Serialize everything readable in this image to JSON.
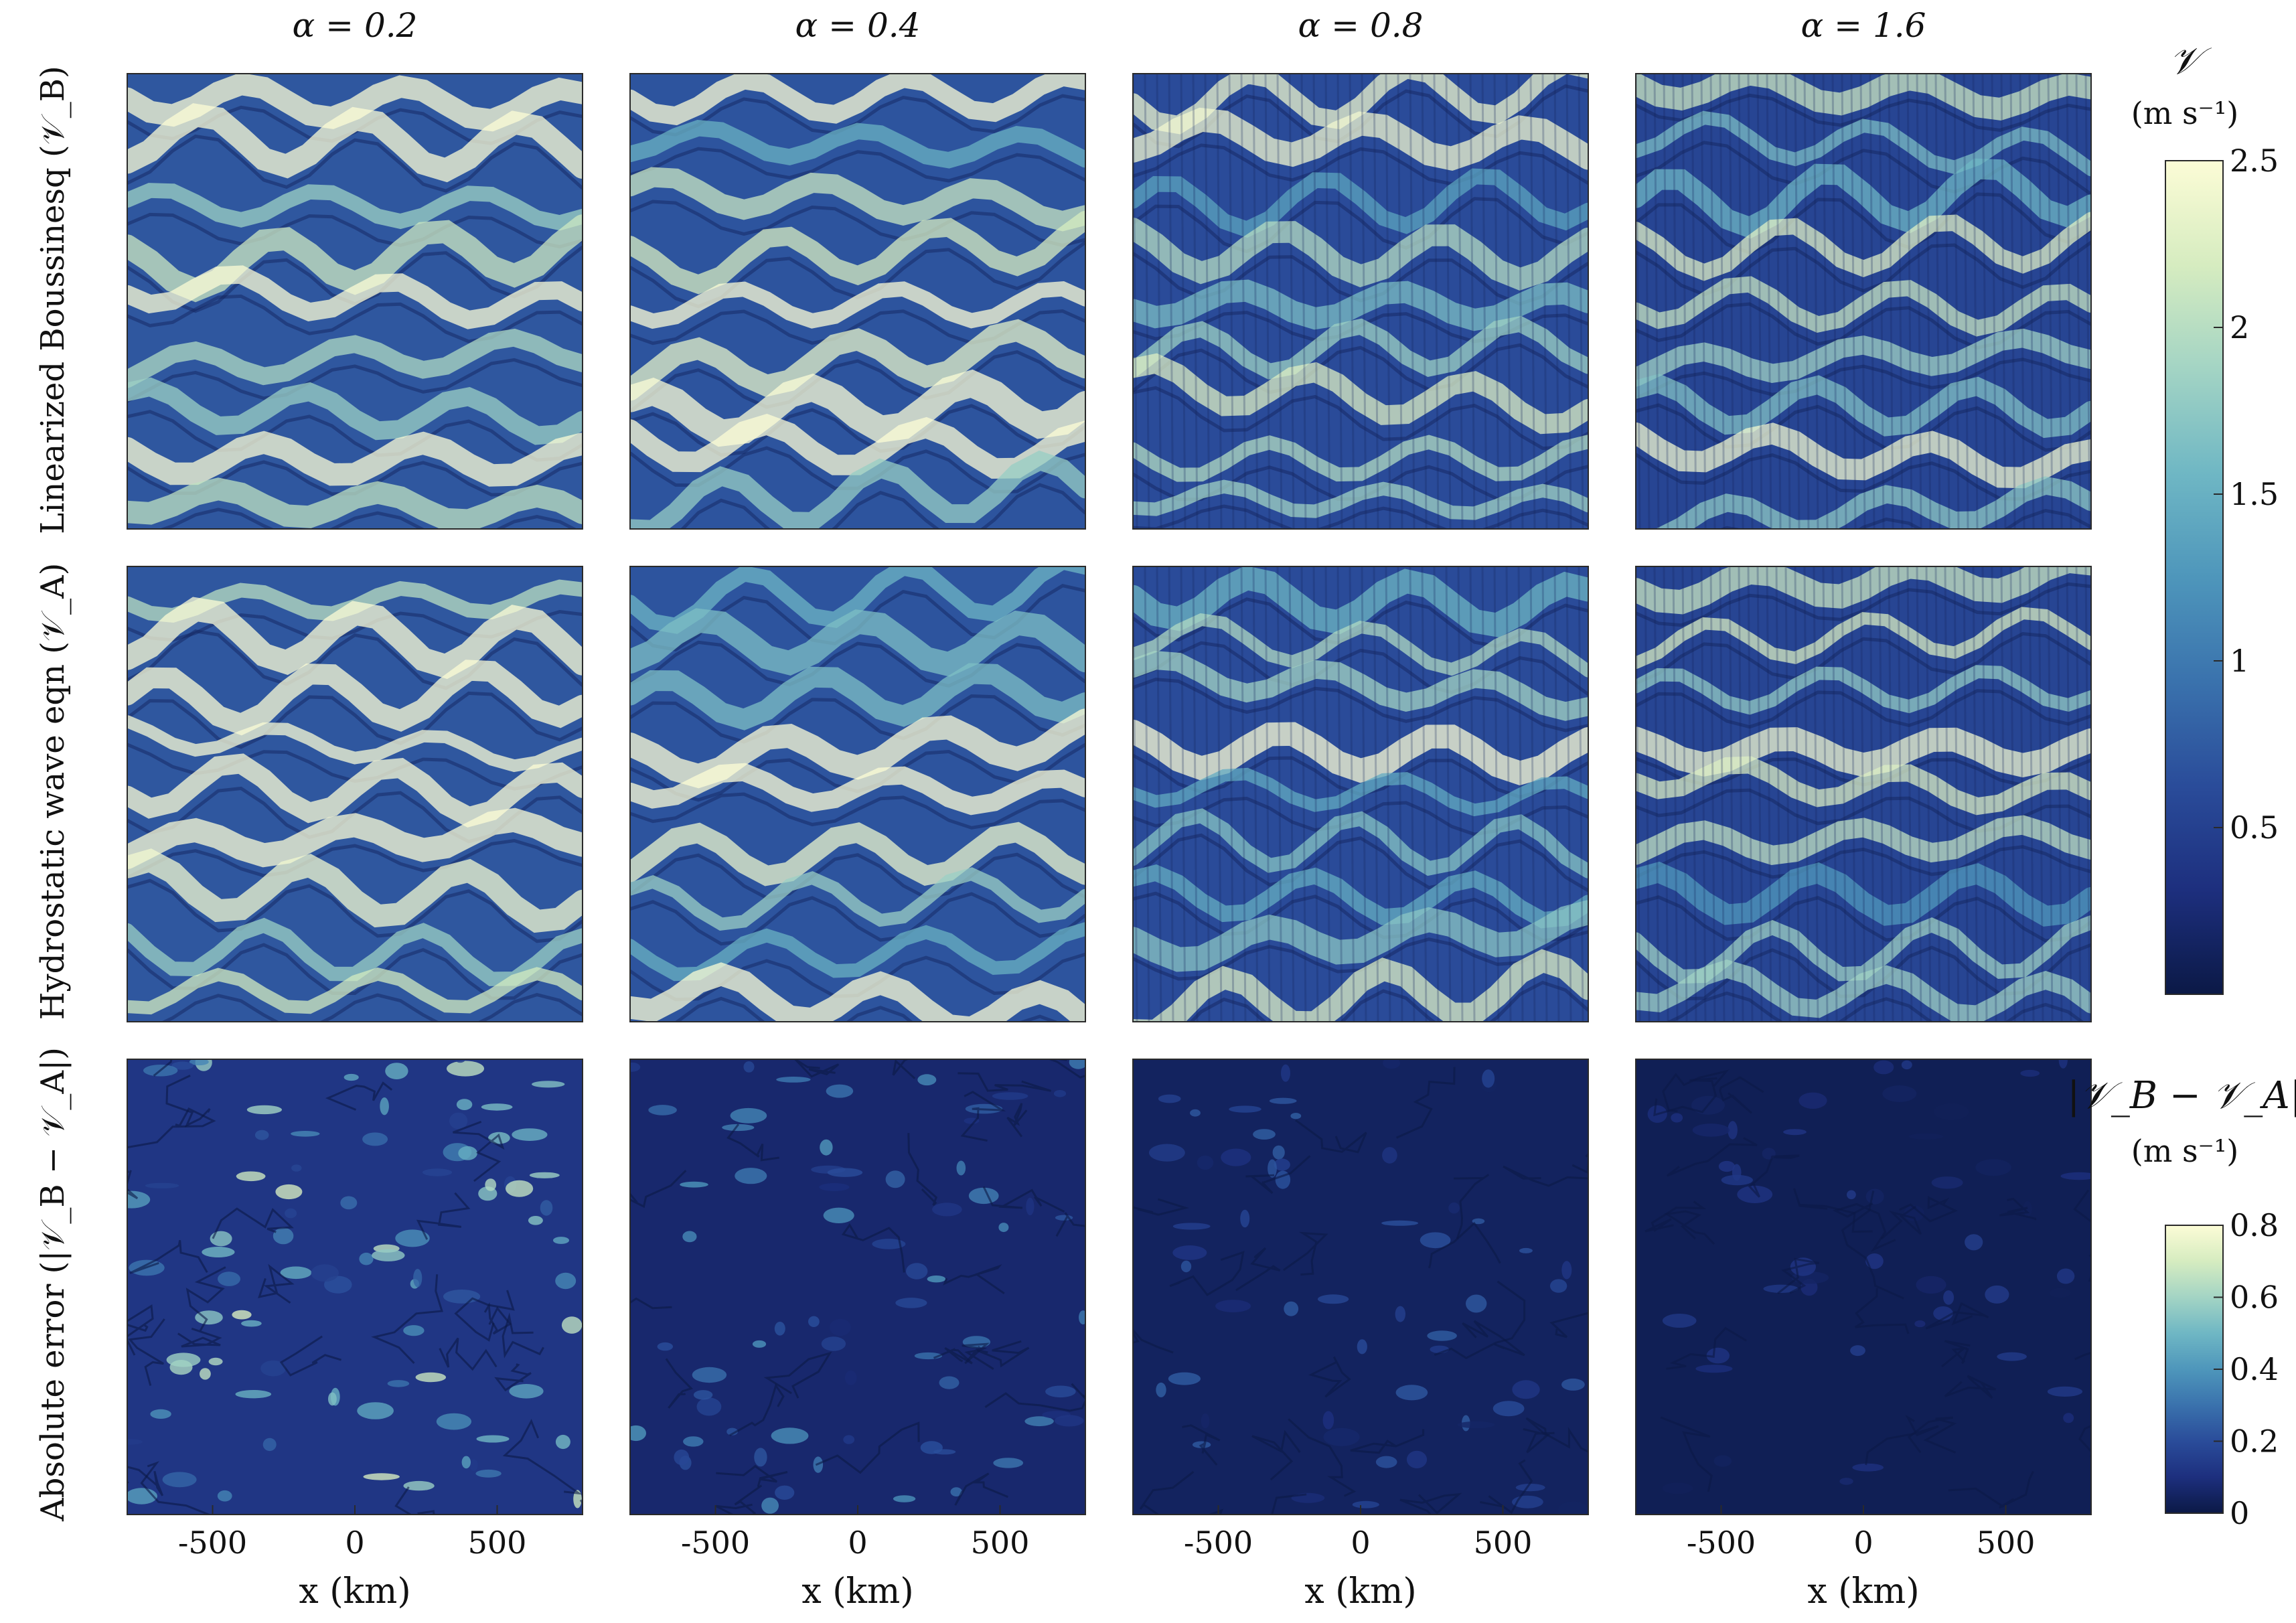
{
  "chart_data": {
    "type": "heatmap",
    "column_titles": [
      "α = 0.2",
      "α = 0.4",
      "α = 0.8",
      "α = 1.6"
    ],
    "alpha_values": [
      0.2,
      0.4,
      0.8,
      1.6
    ],
    "row_titles": [
      "Linearized Boussinesq (𝒱_B)",
      "Hydrostatic wave eqn (𝒱_A)",
      "Absolute error (|𝒱_B − 𝒱_A|)"
    ],
    "x_axis": {
      "label": "x (km)",
      "ticks": [
        -500,
        0,
        500
      ],
      "tick_labels": [
        "-500",
        "0",
        "500"
      ],
      "range": [
        -800,
        800
      ]
    },
    "colorbars": [
      {
        "title": "𝒱",
        "unit": "(m s⁻¹)",
        "range": [
          0,
          2.5
        ],
        "ticks": [
          0.5,
          1,
          1.5,
          2,
          2.5
        ],
        "tick_labels": [
          "0.5",
          "1",
          "1.5",
          "2",
          "2.5"
        ],
        "applies_to_rows": [
          0,
          1
        ]
      },
      {
        "title": "|𝒱_B − 𝒱_A|",
        "unit": "(m s⁻¹)",
        "range": [
          0,
          0.8
        ],
        "ticks": [
          0,
          0.2,
          0.4,
          0.6,
          0.8
        ],
        "tick_labels": [
          "0",
          "0.2",
          "0.4",
          "0.6",
          "0.8"
        ],
        "applies_to_rows": [
          2
        ]
      }
    ],
    "colormap": [
      "#0b1946",
      "#1d2f7e",
      "#2a4c9a",
      "#3a72ad",
      "#4e96bb",
      "#6fb7c4",
      "#a3d4c4",
      "#d6ecc0",
      "#fcfcd6"
    ],
    "panel_intensity": [
      [
        0.52,
        0.5,
        0.45,
        0.4
      ],
      [
        0.52,
        0.5,
        0.45,
        0.4
      ],
      [
        0.28,
        0.16,
        0.1,
        0.06
      ]
    ]
  }
}
